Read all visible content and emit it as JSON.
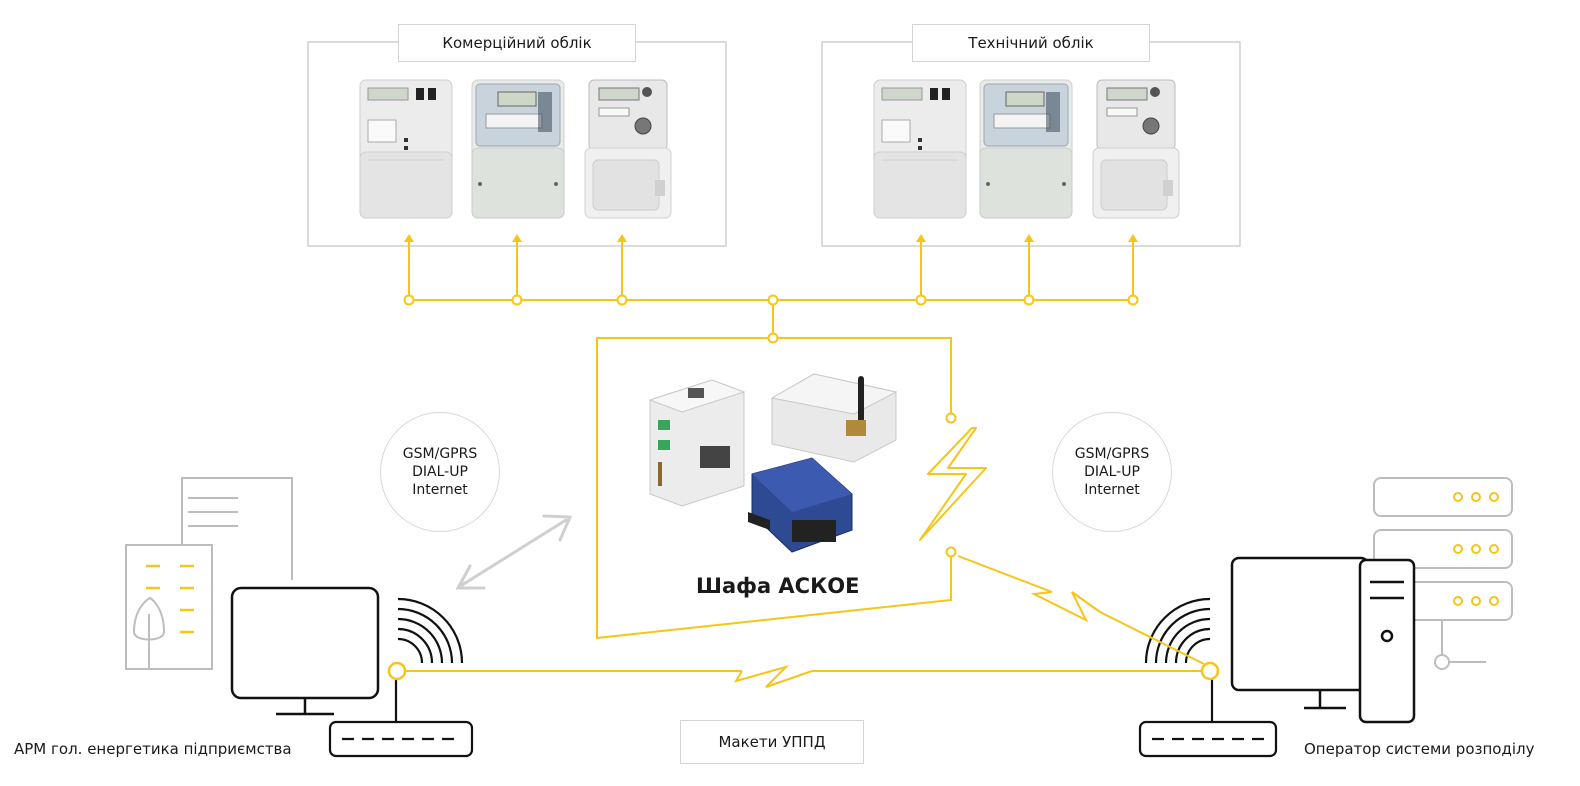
{
  "groups": {
    "commercial": "Комерційний облік",
    "technical": "Технічний облік"
  },
  "cabinet_label": "Шафа АСКОЕ",
  "comm_left": [
    "GSM/GPRS",
    "DIAL-UP",
    "Internet"
  ],
  "comm_right": [
    "GSM/GPRS",
    "DIAL-UP",
    "Internet"
  ],
  "modems_label": "Макети УППД",
  "enterprise_label": "АРМ гол. енергетика підприємства",
  "operator_label": "Оператор системи розподілу",
  "colors": {
    "accent": "#F5C518",
    "line_grey": "#cfcfcf",
    "icon_dark": "#111111",
    "icon_grey": "#bdbdbd",
    "device_blue": "#23408e"
  }
}
